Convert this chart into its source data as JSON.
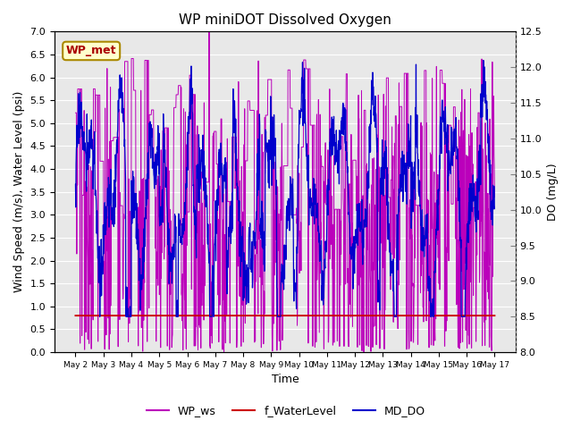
{
  "title": "WP miniDOT Dissolved Oxygen",
  "xlabel": "Time",
  "ylabel_left": "Wind Speed (m/s), Water Level (psi)",
  "ylabel_right": "DO (mg/L)",
  "ylim_left": [
    0.0,
    7.0
  ],
  "ylim_right": [
    8.0,
    12.5
  ],
  "yticks_left": [
    0.0,
    0.5,
    1.0,
    1.5,
    2.0,
    2.5,
    3.0,
    3.5,
    4.0,
    4.5,
    5.0,
    5.5,
    6.0,
    6.5,
    7.0
  ],
  "yticks_right": [
    8.0,
    8.5,
    9.0,
    9.5,
    10.0,
    10.5,
    11.0,
    11.5,
    12.0,
    12.5
  ],
  "xtick_labels": [
    "May 2",
    "May 3",
    "May 4",
    "May 5",
    "May 6",
    "May 7",
    "May 8",
    "May 9",
    "May 10",
    "May 11",
    "May 12",
    "May 13",
    "May 14",
    "May 15",
    "May 16",
    "May 17"
  ],
  "wp_met_label": "WP_met",
  "wp_met_color": "#aa0000",
  "wp_met_bg": "#ffffcc",
  "wp_met_border": "#aa8800",
  "line_wp_ws_color": "#bb00bb",
  "line_f_wl_color": "#cc0000",
  "line_md_do_color": "#0000cc",
  "legend_labels": [
    "WP_ws",
    "f_WaterLevel",
    "MD_DO"
  ],
  "f_water_level_value": 0.8,
  "background_color": "#e8e8e8",
  "grid_color": "#ffffff",
  "title_fontsize": 11,
  "axis_fontsize": 9
}
